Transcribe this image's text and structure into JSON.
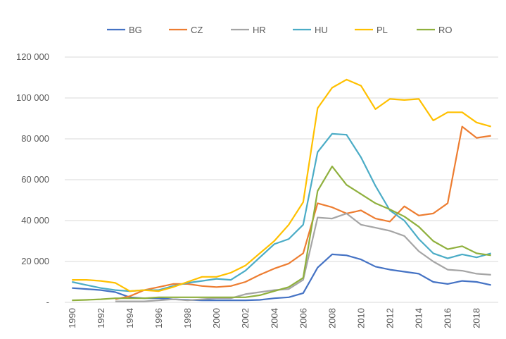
{
  "chart_data": {
    "type": "line",
    "categories": [
      "1990",
      null,
      "1992",
      null,
      "1994",
      null,
      "1996",
      null,
      "1998",
      null,
      "2000",
      null,
      "2002",
      null,
      "2004",
      null,
      "2006",
      null,
      "2008",
      null,
      "2010",
      null,
      "2012",
      null,
      "2014",
      null,
      "2016",
      null,
      "2018",
      null
    ],
    "series": [
      {
        "name": "BG",
        "color": "#4472c4",
        "values": [
          7000,
          6500,
          6000,
          5000,
          2500,
          2000,
          2000,
          1500,
          1200,
          1000,
          1000,
          1000,
          1000,
          1200,
          2000,
          2500,
          4500,
          17000,
          23500,
          23000,
          21000,
          17500,
          16000,
          15000,
          14000,
          10000,
          9000,
          10500,
          10000,
          8500
        ]
      },
      {
        "name": "CZ",
        "color": "#ed7d31",
        "values": [
          null,
          null,
          null,
          1500,
          3000,
          6000,
          7500,
          9000,
          9000,
          8000,
          7500,
          8000,
          10000,
          13500,
          16500,
          19000,
          24000,
          48500,
          46500,
          43500,
          45000,
          41000,
          39500,
          47000,
          42500,
          43500,
          48500,
          86000,
          80500,
          81500
        ]
      },
      {
        "name": "HR",
        "color": "#a5a5a5",
        "values": [
          null,
          null,
          null,
          500,
          500,
          500,
          1000,
          1500,
          1000,
          1500,
          2000,
          2000,
          4000,
          5000,
          6000,
          6500,
          11000,
          41500,
          41000,
          43500,
          38000,
          36500,
          35000,
          32500,
          25000,
          20000,
          16000,
          15500,
          14000,
          13500
        ]
      },
      {
        "name": "HU",
        "color": "#4bacc6",
        "values": [
          10000,
          8500,
          7000,
          6000,
          5500,
          6000,
          6000,
          8000,
          9500,
          10500,
          11500,
          11000,
          15500,
          22000,
          28500,
          31000,
          38000,
          73500,
          82500,
          82000,
          71000,
          57000,
          45000,
          40000,
          31000,
          24000,
          21500,
          23500,
          22000,
          24000
        ]
      },
      {
        "name": "PL",
        "color": "#ffc000",
        "values": [
          11000,
          11000,
          10500,
          9500,
          5500,
          6000,
          5500,
          7500,
          10000,
          12500,
          12500,
          14500,
          18000,
          24000,
          30000,
          38000,
          49000,
          95000,
          105000,
          109000,
          106000,
          94500,
          99500,
          99000,
          99500,
          89000,
          93000,
          93000,
          88000,
          86000
        ]
      },
      {
        "name": "RO",
        "color": "#8fb03d",
        "values": [
          1000,
          1200,
          1500,
          2000,
          2000,
          2000,
          2500,
          2500,
          2500,
          2500,
          2500,
          2500,
          2500,
          3500,
          5500,
          7500,
          12000,
          54500,
          66500,
          57500,
          53000,
          48500,
          45500,
          42000,
          37000,
          30000,
          26000,
          27500,
          24000,
          23000
        ]
      }
    ],
    "ylim": [
      0,
      120000
    ],
    "yticks": [
      {
        "value": 0,
        "label": "-"
      },
      {
        "value": 20000,
        "label": "20 000"
      },
      {
        "value": 40000,
        "label": "40 000"
      },
      {
        "value": 60000,
        "label": "60 000"
      },
      {
        "value": 80000,
        "label": "80 000"
      },
      {
        "value": 100000,
        "label": "100 000"
      },
      {
        "value": 120000,
        "label": "120 000"
      }
    ],
    "grid": true
  }
}
